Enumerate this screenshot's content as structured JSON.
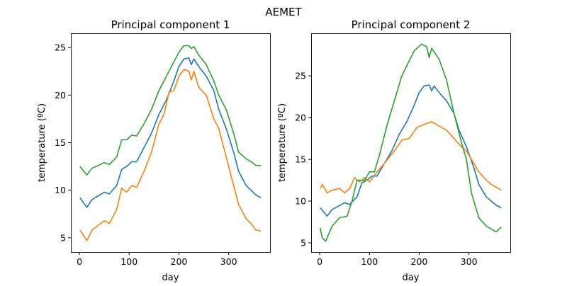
{
  "suptitle": "AEMET",
  "chart_data": [
    {
      "type": "line",
      "title": "Principal component 1",
      "xlabel": "day",
      "ylabel": "temperature (ºC)",
      "xlim": [
        -17.2,
        383.2
      ],
      "ylim": [
        3.5,
        26.5
      ],
      "xticks": [
        0,
        100,
        200,
        300
      ],
      "yticks": [
        5,
        10,
        15,
        20,
        25
      ],
      "grid": false,
      "series": [
        {
          "color": "#1f77b4",
          "x": [
            1,
            15,
            25,
            50,
            60,
            75,
            85,
            95,
            105,
            115,
            130,
            145,
            160,
            175,
            190,
            200,
            210,
            220,
            225,
            230,
            240,
            255,
            270,
            280,
            295,
            310,
            320,
            335,
            345,
            355,
            365
          ],
          "y": [
            9.2,
            8.2,
            9.0,
            9.8,
            9.6,
            10.5,
            12.2,
            12.5,
            13.0,
            13.0,
            14.5,
            16.0,
            18.0,
            19.5,
            21.5,
            23.0,
            23.8,
            23.9,
            23.2,
            23.8,
            23.0,
            22.0,
            20.5,
            18.5,
            16.5,
            14.0,
            12.0,
            10.5,
            10.0,
            9.5,
            9.2
          ]
        },
        {
          "color": "#ff7f0e",
          "x": [
            1,
            15,
            25,
            50,
            60,
            75,
            85,
            95,
            105,
            115,
            130,
            145,
            160,
            170,
            180,
            190,
            200,
            210,
            220,
            225,
            230,
            240,
            255,
            270,
            280,
            295,
            310,
            320,
            335,
            345,
            355,
            365
          ],
          "y": [
            5.8,
            4.7,
            5.8,
            6.8,
            6.5,
            8.0,
            10.2,
            9.8,
            10.5,
            10.3,
            12.0,
            14.0,
            17.0,
            18.0,
            20.3,
            20.5,
            22.0,
            22.7,
            22.5,
            21.6,
            22.5,
            20.8,
            20.0,
            17.5,
            16.5,
            13.5,
            10.5,
            8.5,
            7.0,
            6.5,
            5.8,
            5.7
          ]
        },
        {
          "color": "#2ca02c",
          "x": [
            1,
            15,
            25,
            50,
            60,
            75,
            85,
            95,
            105,
            115,
            130,
            145,
            160,
            170,
            180,
            190,
            200,
            210,
            220,
            225,
            230,
            240,
            255,
            270,
            280,
            295,
            310,
            320,
            335,
            345,
            355,
            365
          ],
          "y": [
            12.5,
            11.6,
            12.3,
            12.9,
            12.7,
            13.5,
            15.3,
            15.3,
            15.8,
            15.7,
            17.0,
            18.5,
            20.5,
            21.5,
            22.5,
            23.5,
            24.5,
            25.2,
            25.2,
            24.9,
            25.1,
            24.2,
            23.2,
            21.5,
            20.0,
            18.5,
            16.0,
            14.0,
            13.3,
            13.0,
            12.6,
            12.6
          ]
        }
      ]
    },
    {
      "type": "line",
      "title": "Principal component 2",
      "xlabel": "day",
      "ylabel": "temperature (ºC)",
      "xlim": [
        -17.2,
        383.2
      ],
      "ylim": [
        3.9,
        30.1
      ],
      "xticks": [
        0,
        100,
        200,
        300
      ],
      "yticks": [
        5,
        10,
        15,
        20,
        25
      ],
      "grid": false,
      "series": [
        {
          "color": "#1f77b4",
          "x": [
            1,
            15,
            25,
            50,
            60,
            75,
            85,
            95,
            105,
            115,
            130,
            145,
            160,
            175,
            190,
            200,
            210,
            220,
            225,
            230,
            240,
            255,
            270,
            280,
            295,
            310,
            320,
            335,
            345,
            355,
            365
          ],
          "y": [
            9.2,
            8.2,
            9.0,
            9.8,
            9.6,
            10.5,
            12.2,
            12.5,
            13.0,
            13.0,
            14.5,
            16.0,
            18.0,
            19.5,
            21.5,
            23.0,
            23.8,
            23.9,
            23.2,
            23.8,
            23.0,
            22.0,
            20.5,
            18.5,
            16.5,
            14.0,
            12.0,
            10.5,
            10.0,
            9.5,
            9.2
          ]
        },
        {
          "color": "#ff7f0e",
          "x": [
            1,
            5,
            15,
            25,
            40,
            50,
            60,
            70,
            80,
            90,
            100,
            115,
            130,
            150,
            165,
            180,
            195,
            210,
            225,
            240,
            255,
            270,
            285,
            295,
            305,
            320,
            335,
            345,
            360,
            365
          ],
          "y": [
            11.5,
            12.0,
            11.0,
            11.3,
            11.5,
            11.0,
            11.5,
            12.8,
            12.3,
            12.8,
            12.3,
            13.5,
            14.5,
            16.0,
            17.3,
            17.5,
            18.8,
            19.2,
            19.5,
            19.0,
            18.5,
            17.5,
            16.5,
            16.0,
            15.0,
            13.5,
            12.5,
            12.0,
            11.5,
            11.3
          ]
        },
        {
          "color": "#2ca02c",
          "x": [
            1,
            5,
            12,
            25,
            40,
            55,
            65,
            75,
            90,
            100,
            110,
            120,
            135,
            150,
            165,
            180,
            190,
            205,
            215,
            220,
            225,
            240,
            255,
            270,
            285,
            295,
            305,
            320,
            335,
            355,
            365
          ],
          "y": [
            6.8,
            5.6,
            5.2,
            7.0,
            8.0,
            8.2,
            10.0,
            12.5,
            12.5,
            13.5,
            13.5,
            15.5,
            19.0,
            22.0,
            25.0,
            26.8,
            28.0,
            28.8,
            28.5,
            27.2,
            28.3,
            27.0,
            24.5,
            20.5,
            17.0,
            15.0,
            11.0,
            8.0,
            7.0,
            6.3,
            6.9
          ]
        }
      ]
    }
  ]
}
